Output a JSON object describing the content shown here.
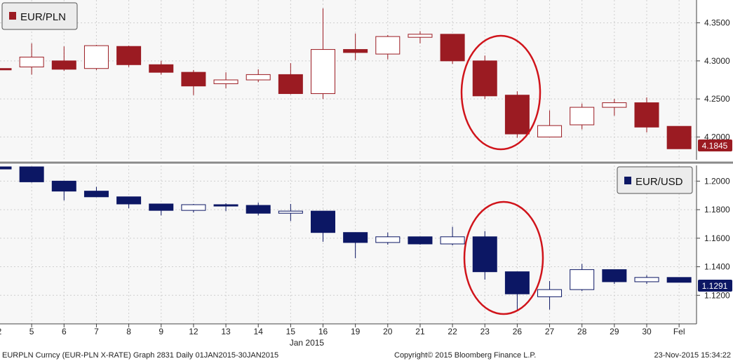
{
  "chart_data": [
    {
      "type": "candlestick",
      "legend": "EUR/PLN",
      "color": "#9b1b22",
      "yticks": [
        "4.2000",
        "4.2500",
        "4.3000",
        "4.3500"
      ],
      "ylim": [
        4.17,
        4.38
      ],
      "last_value": "4.1845",
      "candles": [
        {
          "x": "2",
          "open": 4.29,
          "high": 4.29,
          "low": 4.282,
          "close": 4.289
        },
        {
          "x": "5",
          "open": 4.292,
          "high": 4.323,
          "low": 4.282,
          "close": 4.305
        },
        {
          "x": "6",
          "open": 4.3,
          "high": 4.319,
          "low": 4.287,
          "close": 4.289
        },
        {
          "x": "7",
          "open": 4.29,
          "high": 4.321,
          "low": 4.288,
          "close": 4.32
        },
        {
          "x": "8",
          "open": 4.319,
          "high": 4.32,
          "low": 4.292,
          "close": 4.295
        },
        {
          "x": "9",
          "open": 4.295,
          "high": 4.3,
          "low": 4.282,
          "close": 4.285
        },
        {
          "x": "12",
          "open": 4.285,
          "high": 4.288,
          "low": 4.255,
          "close": 4.267
        },
        {
          "x": "13",
          "open": 4.27,
          "high": 4.285,
          "low": 4.264,
          "close": 4.275
        },
        {
          "x": "14",
          "open": 4.275,
          "high": 4.289,
          "low": 4.272,
          "close": 4.282
        },
        {
          "x": "15",
          "open": 4.282,
          "high": 4.297,
          "low": 4.256,
          "close": 4.257
        },
        {
          "x": "16",
          "open": 4.257,
          "high": 4.369,
          "low": 4.25,
          "close": 4.315
        },
        {
          "x": "19",
          "open": 4.315,
          "high": 4.336,
          "low": 4.301,
          "close": 4.311
        },
        {
          "x": "20",
          "open": 4.309,
          "high": 4.334,
          "low": 4.302,
          "close": 4.332
        },
        {
          "x": "21",
          "open": 4.331,
          "high": 4.339,
          "low": 4.323,
          "close": 4.335
        },
        {
          "x": "22",
          "open": 4.335,
          "high": 4.335,
          "low": 4.296,
          "close": 4.3
        },
        {
          "x": "23",
          "open": 4.3,
          "high": 4.307,
          "low": 4.25,
          "close": 4.254
        },
        {
          "x": "26",
          "open": 4.255,
          "high": 4.26,
          "low": 4.199,
          "close": 4.204
        },
        {
          "x": "27",
          "open": 4.2,
          "high": 4.235,
          "low": 4.2,
          "close": 4.215
        },
        {
          "x": "28",
          "open": 4.216,
          "high": 4.244,
          "low": 4.21,
          "close": 4.239
        },
        {
          "x": "29",
          "open": 4.239,
          "high": 4.25,
          "low": 4.228,
          "close": 4.245
        },
        {
          "x": "30",
          "open": 4.245,
          "high": 4.252,
          "low": 4.206,
          "close": 4.213
        },
        {
          "x": "Fel",
          "open": 4.214,
          "high": 4.214,
          "low": 4.185,
          "close": 4.1845
        }
      ]
    },
    {
      "type": "candlestick",
      "legend": "EUR/USD",
      "color": "#0c1764",
      "yticks": [
        "1.1200",
        "1.1400",
        "1.1600",
        "1.1800",
        "1.2000"
      ],
      "ylim": [
        1.1,
        1.211
      ],
      "last_value": "1.1291",
      "candles": [
        {
          "x": "2",
          "open": 1.21,
          "high": 1.21,
          "low": 1.2085,
          "close": 1.2085
        },
        {
          "x": "5",
          "open": 1.21,
          "high": 1.21,
          "low": 1.199,
          "close": 1.1995
        },
        {
          "x": "6",
          "open": 1.2,
          "high": 1.2,
          "low": 1.1865,
          "close": 1.193
        },
        {
          "x": "7",
          "open": 1.193,
          "high": 1.196,
          "low": 1.189,
          "close": 1.189
        },
        {
          "x": "8",
          "open": 1.189,
          "high": 1.189,
          "low": 1.181,
          "close": 1.184
        },
        {
          "x": "9",
          "open": 1.184,
          "high": 1.184,
          "low": 1.176,
          "close": 1.1795
        },
        {
          "x": "12",
          "open": 1.1795,
          "high": 1.184,
          "low": 1.178,
          "close": 1.1835
        },
        {
          "x": "13",
          "open": 1.1835,
          "high": 1.1845,
          "low": 1.179,
          "close": 1.183
        },
        {
          "x": "14",
          "open": 1.183,
          "high": 1.185,
          "low": 1.176,
          "close": 1.1775
        },
        {
          "x": "15",
          "open": 1.1775,
          "high": 1.184,
          "low": 1.172,
          "close": 1.179
        },
        {
          "x": "16",
          "open": 1.179,
          "high": 1.179,
          "low": 1.1575,
          "close": 1.164
        },
        {
          "x": "19",
          "open": 1.164,
          "high": 1.164,
          "low": 1.146,
          "close": 1.157
        },
        {
          "x": "20",
          "open": 1.157,
          "high": 1.164,
          "low": 1.1555,
          "close": 1.161
        },
        {
          "x": "21",
          "open": 1.161,
          "high": 1.161,
          "low": 1.1555,
          "close": 1.156
        },
        {
          "x": "22",
          "open": 1.156,
          "high": 1.168,
          "low": 1.155,
          "close": 1.161
        },
        {
          "x": "23",
          "open": 1.161,
          "high": 1.165,
          "low": 1.131,
          "close": 1.1365
        },
        {
          "x": "26",
          "open": 1.1365,
          "high": 1.1365,
          "low": 1.11,
          "close": 1.121
        },
        {
          "x": "27",
          "open": 1.119,
          "high": 1.13,
          "low": 1.11,
          "close": 1.124
        },
        {
          "x": "28",
          "open": 1.124,
          "high": 1.142,
          "low": 1.123,
          "close": 1.138
        },
        {
          "x": "29",
          "open": 1.138,
          "high": 1.138,
          "low": 1.128,
          "close": 1.1295
        },
        {
          "x": "30",
          "open": 1.1295,
          "high": 1.134,
          "low": 1.128,
          "close": 1.1325
        },
        {
          "x": "Fel",
          "open": 1.1325,
          "high": 1.1325,
          "low": 1.1291,
          "close": 1.1291
        }
      ]
    }
  ],
  "x_axis": {
    "labels": [
      "2",
      "5",
      "6",
      "7",
      "8",
      "9",
      "12",
      "13",
      "14",
      "15",
      "16",
      "19",
      "20",
      "21",
      "22",
      "23",
      "26",
      "27",
      "28",
      "29",
      "30",
      "Fel"
    ],
    "month_label": "Jan 2015"
  },
  "footer": {
    "left": "EURPLN Curncy (EUR-PLN X-RATE) Graph 2831   Daily 01JAN2015-30JAN2015",
    "center": "Copyright© 2015 Bloomberg Finance L.P.",
    "right": "23-Nov-2015 15:34:22"
  },
  "highlight_color": "#d0141b"
}
